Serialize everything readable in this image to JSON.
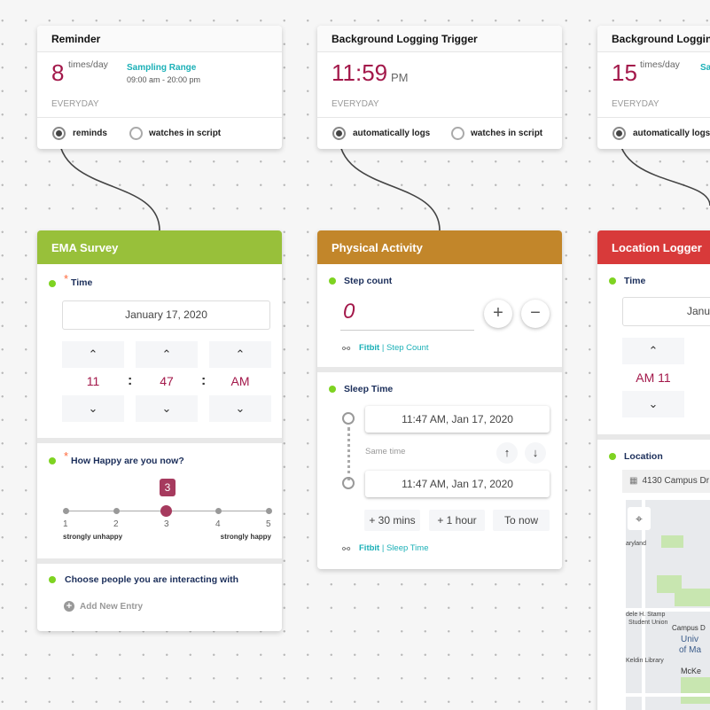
{
  "colors": {
    "ema": "#98c03a",
    "physical": "#c2862a",
    "location": "#d83a3a",
    "accent": "#a3184a",
    "teal": "#1bb0b7",
    "status_dot": "#7ed321"
  },
  "triggers": [
    {
      "title": "Reminder",
      "value": "8",
      "unit": "times/day",
      "range_label": "Sampling Range",
      "range": "09:00 am - 20:00 pm",
      "repeat": "EVERYDAY",
      "option1": "reminds",
      "option2": "watches in script",
      "selected": "reminds"
    },
    {
      "title": "Background Logging Trigger",
      "value": "11:59",
      "unit": "PM",
      "repeat": "EVERYDAY",
      "option1": "automatically logs",
      "option2": "watches in script",
      "selected": "automatically logs"
    },
    {
      "title": "Background Logging",
      "value": "15",
      "unit": "times/day",
      "range_label": "Sa",
      "repeat": "EVERYDAY",
      "option1": "automatically logs",
      "selected": "automatically logs"
    }
  ],
  "ema": {
    "title": "EMA Survey",
    "time_label": "Time",
    "date": "January 17, 2020",
    "hour": "11",
    "minute": "47",
    "ampm": "AM",
    "sep": ":",
    "happy_label": "How Happy are you now?",
    "happy_value": "3",
    "scale": [
      "1",
      "2",
      "3",
      "4",
      "5"
    ],
    "low": "strongly unhappy",
    "high": "strongly happy",
    "people_label": "Choose people you are interacting with",
    "add_entry": "Add New Entry"
  },
  "physical": {
    "title": "Physical Activity",
    "step_label": "Step count",
    "step_value": "0",
    "plus": "+",
    "minus": "−",
    "step_src": "Fitbit",
    "step_src2": "| Step Count",
    "sleep_label": "Sleep Time",
    "start": "11:47 AM, Jan 17, 2020",
    "same": "Same time",
    "end": "11:47 AM, Jan 17, 2020",
    "b1": "+ 30 mins",
    "b2": "+ 1 hour",
    "b3": "To now",
    "sleep_src": "Fitbit",
    "sleep_src2": "| Sleep Time"
  },
  "location": {
    "title": "Location Logger",
    "time_label": "Time",
    "date": "Janu",
    "time": "AM 11",
    "loc_label": "Location",
    "address": "4130 Campus Dr",
    "map_labels": [
      "aryland",
      "dele H. Stamp",
      "Student Union",
      "Univ",
      "of Ma",
      "Keldin Library",
      "McKe",
      "Campus D"
    ]
  }
}
